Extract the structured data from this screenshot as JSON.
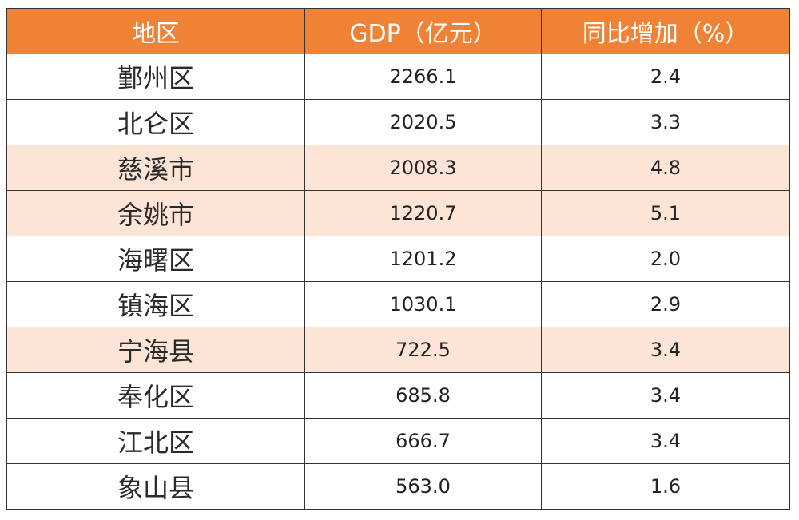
{
  "table": {
    "headers": [
      "地区",
      "GDP（亿元）",
      "同比增加（%）"
    ],
    "header_color": "#ef8235",
    "highlight_color": "#fce4d6",
    "rows": [
      {
        "region": "鄞州区",
        "gdp": "2266.1",
        "growth": "2.4",
        "highlight": false
      },
      {
        "region": "北仑区",
        "gdp": "2020.5",
        "growth": "3.3",
        "highlight": false
      },
      {
        "region": "慈溪市",
        "gdp": "2008.3",
        "growth": "4.8",
        "highlight": true
      },
      {
        "region": "余姚市",
        "gdp": "1220.7",
        "growth": "5.1",
        "highlight": true
      },
      {
        "region": "海曙区",
        "gdp": "1201.2",
        "growth": "2.0",
        "highlight": false
      },
      {
        "region": "镇海区",
        "gdp": "1030.1",
        "growth": "2.9",
        "highlight": false
      },
      {
        "region": "宁海县",
        "gdp": "722.5",
        "growth": "3.4",
        "highlight": true
      },
      {
        "region": "奉化区",
        "gdp": "685.8",
        "growth": "3.4",
        "highlight": false
      },
      {
        "region": "江北区",
        "gdp": "666.7",
        "growth": "3.4",
        "highlight": false
      },
      {
        "region": "象山县",
        "gdp": "563.0",
        "growth": "1.6",
        "highlight": false
      }
    ]
  }
}
